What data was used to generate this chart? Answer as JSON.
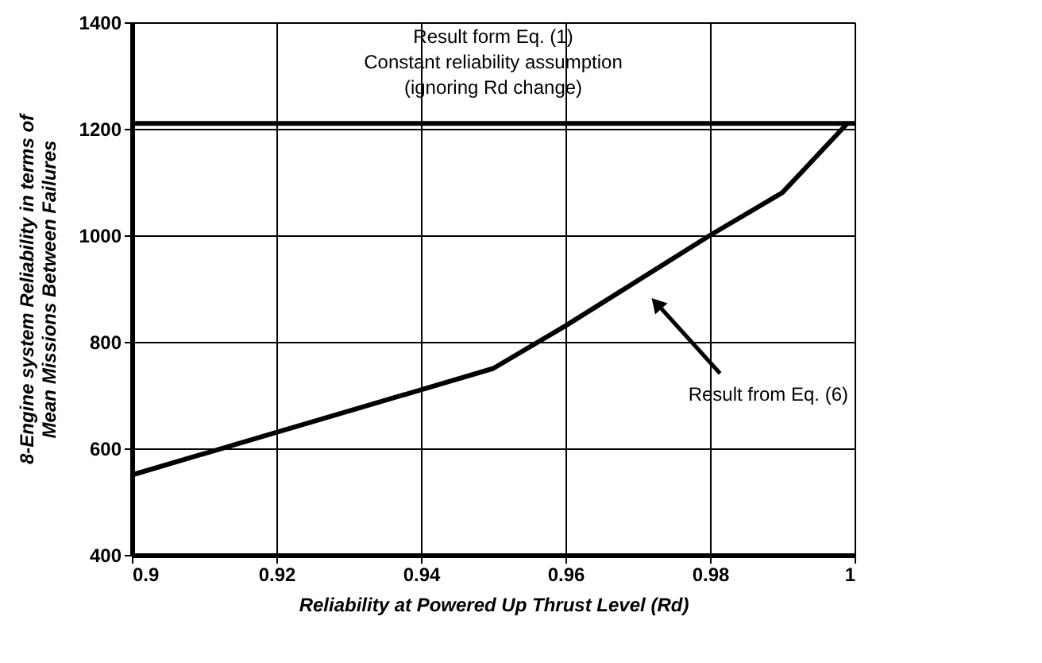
{
  "chart_data": {
    "type": "line",
    "xlabel": "Reliability at Powered Up Thrust Level  (Rd)",
    "ylabel": "8-Engine system Reliability in terms of\nMean Missions Between Failures",
    "x": [
      0.9,
      0.92,
      0.94,
      0.95,
      0.96,
      0.98,
      0.99,
      0.999
    ],
    "series": [
      {
        "color": "#000000",
        "values": [
          550,
          630,
          710,
          750,
          830,
          1000,
          1080,
          1210
        ]
      }
    ],
    "xlim": [
      0.9,
      1.0
    ],
    "xticks": [
      {
        "value": 0.9,
        "label": "0.9"
      },
      0.92,
      0.94,
      0.96,
      0.98,
      {
        "value": 1.0,
        "label": "1"
      }
    ],
    "ylim": [
      400,
      1400
    ],
    "yticks": [
      400,
      600,
      800,
      1000,
      1200,
      1400
    ],
    "grid": true,
    "marker": "none",
    "line_style": "solid",
    "ref_lines": [
      {
        "axis": "y",
        "value": 1210,
        "color": "#000000"
      }
    ],
    "annotations": [
      "Result form Eq. (1)",
      "Constant reliability assumption",
      "(ignoring Rd  change)",
      "Result from Eq. (6)"
    ]
  }
}
